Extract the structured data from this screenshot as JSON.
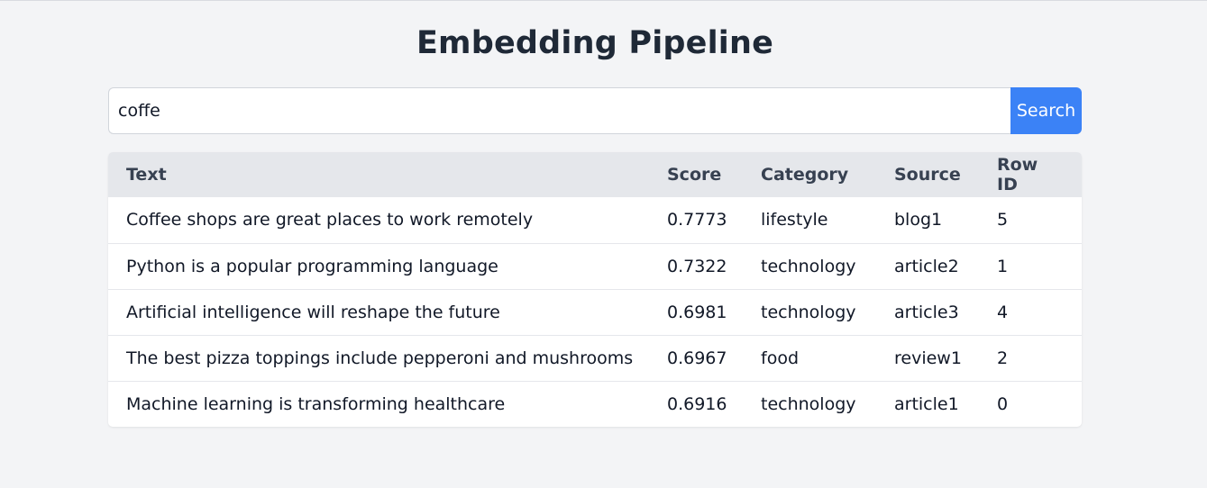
{
  "page": {
    "title": "Embedding Pipeline"
  },
  "search": {
    "value": "coffe",
    "button_label": "Search"
  },
  "colors": {
    "background": "#f3f4f6",
    "accent": "#3b82f6",
    "table_header": "#e5e7eb"
  },
  "table": {
    "headers": {
      "text": "Text",
      "score": "Score",
      "category": "Category",
      "source": "Source",
      "row_id": "Row ID"
    },
    "rows": [
      {
        "text": "Coffee shops are great places to work remotely",
        "score": "0.7773",
        "category": "lifestyle",
        "source": "blog1",
        "row_id": "5"
      },
      {
        "text": "Python is a popular programming language",
        "score": "0.7322",
        "category": "technology",
        "source": "article2",
        "row_id": "1"
      },
      {
        "text": "Artificial intelligence will reshape the future",
        "score": "0.6981",
        "category": "technology",
        "source": "article3",
        "row_id": "4"
      },
      {
        "text": "The best pizza toppings include pepperoni and mushrooms",
        "score": "0.6967",
        "category": "food",
        "source": "review1",
        "row_id": "2"
      },
      {
        "text": "Machine learning is transforming healthcare",
        "score": "0.6916",
        "category": "technology",
        "source": "article1",
        "row_id": "0"
      }
    ]
  }
}
